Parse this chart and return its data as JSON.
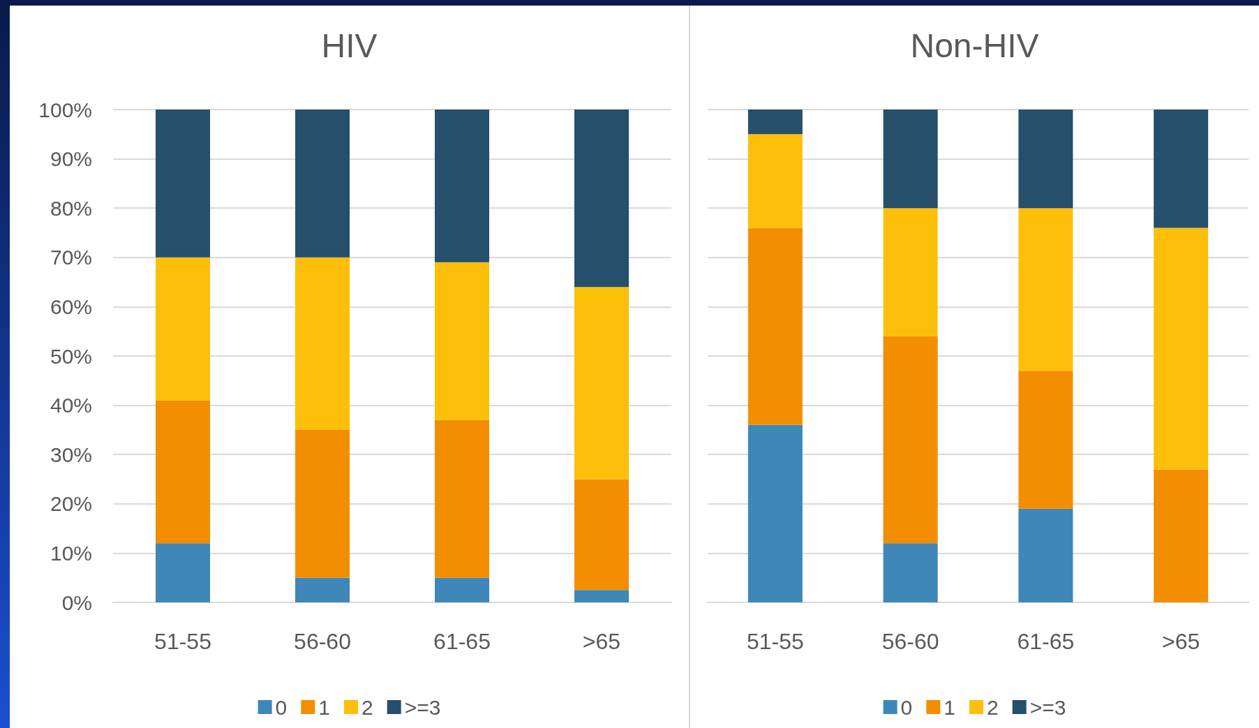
{
  "chart_data": [
    {
      "type": "bar",
      "title": "HIV",
      "stacked": true,
      "categories": [
        "51-55",
        "56-60",
        "61-65",
        ">65"
      ],
      "ylim": [
        0,
        100
      ],
      "yticks": [
        {
          "value": 0,
          "label": "0%"
        },
        {
          "value": 10,
          "label": "10%"
        },
        {
          "value": 20,
          "label": "20%"
        },
        {
          "value": 30,
          "label": "30%"
        },
        {
          "value": 40,
          "label": "40%"
        },
        {
          "value": 50,
          "label": "50%"
        },
        {
          "value": 60,
          "label": "60%"
        },
        {
          "value": 70,
          "label": "70%"
        },
        {
          "value": 80,
          "label": "80%"
        },
        {
          "value": 90,
          "label": "90%"
        },
        {
          "value": 100,
          "label": "100%"
        }
      ],
      "grid": "y",
      "legend": "bottom",
      "series": [
        {
          "name": "0",
          "color": "#3e87b8",
          "values": [
            12,
            5,
            5,
            2.5
          ]
        },
        {
          "name": "1",
          "color": "#f28e00",
          "values": [
            29,
            30,
            32,
            22.5
          ]
        },
        {
          "name": "2",
          "color": "#fdbf0a",
          "values": [
            29,
            35,
            32,
            39
          ]
        },
        {
          "name": ">=3",
          "color": "#264f6b",
          "values": [
            30,
            30,
            31,
            36
          ]
        }
      ]
    },
    {
      "type": "bar",
      "title": "Non-HIV",
      "stacked": true,
      "categories": [
        "51-55",
        "56-60",
        "61-65",
        ">65"
      ],
      "ylim": [
        0,
        100
      ],
      "yticks": [
        {
          "value": 0,
          "label": null
        },
        {
          "value": 10,
          "label": null
        },
        {
          "value": 20,
          "label": null
        },
        {
          "value": 30,
          "label": null
        },
        {
          "value": 40,
          "label": null
        },
        {
          "value": 50,
          "label": null
        },
        {
          "value": 60,
          "label": null
        },
        {
          "value": 70,
          "label": null
        },
        {
          "value": 80,
          "label": null
        },
        {
          "value": 90,
          "label": null
        },
        {
          "value": 100,
          "label": null
        }
      ],
      "grid": "y",
      "legend": "bottom",
      "tick_labels": "x",
      "series": [
        {
          "name": "0",
          "color": "#3e87b8",
          "values": [
            36,
            12,
            19,
            0
          ]
        },
        {
          "name": "1",
          "color": "#f28e00",
          "values": [
            40,
            42,
            28,
            27
          ]
        },
        {
          "name": "2",
          "color": "#fdbf0a",
          "values": [
            19,
            26,
            33,
            49
          ]
        },
        {
          "name": ">=3",
          "color": "#264f6b",
          "values": [
            5,
            20,
            20,
            24
          ]
        }
      ]
    }
  ]
}
